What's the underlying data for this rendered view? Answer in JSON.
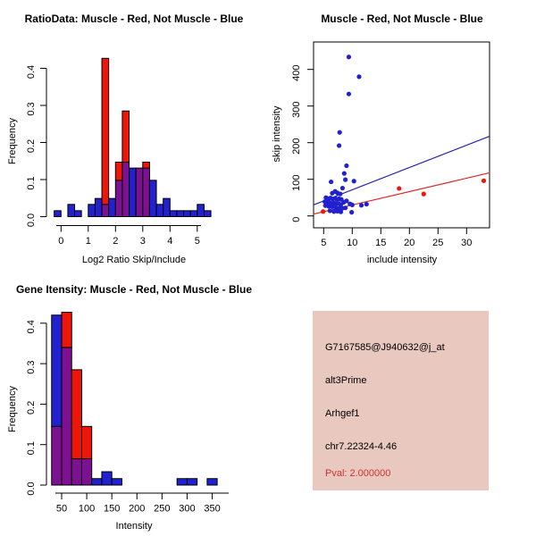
{
  "colors": {
    "red": "#ee1509",
    "blue": "#2121d0",
    "overlap_purple": "#7c1191",
    "blue_line": "#2222aa",
    "red_line": "#dd2222",
    "info_box_bg": "#e9c8c0",
    "pval_red": "#cd3232",
    "axis": "#000000"
  },
  "info_box": {
    "probe_id": "G7167585@J940632@j_at",
    "splice_type": "alt3Prime",
    "gene": "Arhgef1",
    "location": "chr7.22324-4.46",
    "pval": "Pval: 2.000000"
  },
  "chart_data": [
    {
      "id": "ratio_hist",
      "type": "bar",
      "subtype": "overlaid-histogram",
      "title": "RatioData: Muscle - Red, Not Muscle - Blue",
      "xlabel": "Log2 Ratio Skip/Include",
      "ylabel": "Frequency",
      "x_ticks": [
        0,
        1,
        2,
        3,
        4,
        5
      ],
      "y_ticks": [
        0.0,
        0.1,
        0.2,
        0.3,
        0.4
      ],
      "xlim": [
        -0.5,
        5.6
      ],
      "ylim": [
        0,
        0.45
      ],
      "bin_width": 0.25,
      "series_legend": {
        "red": "Muscle",
        "blue": "Not Muscle"
      },
      "bars": [
        {
          "x": -0.25,
          "blue": 0.016,
          "red": 0
        },
        {
          "x": 0.25,
          "blue": 0.033,
          "red": 0
        },
        {
          "x": 0.5,
          "blue": 0.016,
          "red": 0
        },
        {
          "x": 1.0,
          "blue": 0.033,
          "red": 0
        },
        {
          "x": 1.25,
          "blue": 0.049,
          "red": 0
        },
        {
          "x": 1.5,
          "blue": 0.033,
          "red": 0.427
        },
        {
          "x": 1.75,
          "blue": 0.049,
          "red": 0
        },
        {
          "x": 2.0,
          "blue": 0.098,
          "red": 0.147
        },
        {
          "x": 2.25,
          "blue": 0.147,
          "red": 0.285
        },
        {
          "x": 2.5,
          "blue": 0.131,
          "red": 0
        },
        {
          "x": 2.75,
          "blue": 0.131,
          "red": 0.131
        },
        {
          "x": 3.0,
          "blue": 0.131,
          "red": 0.147
        },
        {
          "x": 3.25,
          "blue": 0.098,
          "red": 0
        },
        {
          "x": 3.5,
          "blue": 0.033,
          "red": 0
        },
        {
          "x": 3.75,
          "blue": 0.049,
          "red": 0
        },
        {
          "x": 4.0,
          "blue": 0.016,
          "red": 0
        },
        {
          "x": 4.25,
          "blue": 0.016,
          "red": 0
        },
        {
          "x": 4.5,
          "blue": 0.016,
          "red": 0
        },
        {
          "x": 4.75,
          "blue": 0.016,
          "red": 0
        },
        {
          "x": 5.0,
          "blue": 0.033,
          "red": 0
        },
        {
          "x": 5.25,
          "blue": 0.016,
          "red": 0
        }
      ]
    },
    {
      "id": "scatter",
      "type": "scatter",
      "title": "Muscle - Red, Not Muscle - Blue",
      "xlabel": "include intensity",
      "ylabel": "skip intensity",
      "x_ticks": [
        5,
        10,
        15,
        20,
        25,
        30
      ],
      "y_ticks": [
        0,
        100,
        200,
        300,
        400
      ],
      "xlim": [
        3.2,
        34.1
      ],
      "ylim": [
        -33,
        476
      ],
      "blue_points": [
        [
          9.4,
          434
        ],
        [
          11.2,
          380
        ],
        [
          9.4,
          333
        ],
        [
          7.8,
          228
        ],
        [
          7.7,
          192
        ],
        [
          9.0,
          137
        ],
        [
          8.6,
          116
        ],
        [
          8.8,
          99
        ],
        [
          10.3,
          95
        ],
        [
          6.3,
          93
        ],
        [
          8.3,
          76
        ],
        [
          7.0,
          67
        ],
        [
          6.5,
          62
        ],
        [
          7.4,
          63
        ],
        [
          7.9,
          60
        ],
        [
          5.4,
          50
        ],
        [
          5.8,
          47
        ],
        [
          6.2,
          49
        ],
        [
          6.6,
          46
        ],
        [
          7.0,
          48
        ],
        [
          7.3,
          45
        ],
        [
          7.7,
          47
        ],
        [
          8.1,
          45
        ],
        [
          5.2,
          39
        ],
        [
          5.6,
          36
        ],
        [
          6.0,
          37
        ],
        [
          6.4,
          34
        ],
        [
          6.8,
          35
        ],
        [
          7.2,
          33
        ],
        [
          7.6,
          34
        ],
        [
          8.0,
          31
        ],
        [
          8.5,
          37
        ],
        [
          9.0,
          41
        ],
        [
          9.6,
          33
        ],
        [
          10.0,
          30
        ],
        [
          5.3,
          28
        ],
        [
          5.9,
          26
        ],
        [
          6.5,
          25
        ],
        [
          7.1,
          23
        ],
        [
          7.7,
          21
        ],
        [
          8.3,
          21
        ],
        [
          8.8,
          22
        ],
        [
          11.6,
          29
        ],
        [
          12.5,
          32
        ],
        [
          6.1,
          14
        ],
        [
          6.8,
          12
        ],
        [
          7.4,
          13
        ],
        [
          8.0,
          11
        ],
        [
          9.9,
          10
        ]
      ],
      "red_points": [
        [
          4.9,
          12
        ],
        [
          18.2,
          75
        ],
        [
          22.5,
          60
        ],
        [
          33.0,
          96
        ]
      ],
      "blue_line": {
        "x1": 3.2,
        "y1": 30,
        "x2": 34.1,
        "y2": 218
      },
      "red_line": {
        "x1": 3.2,
        "y1": 5,
        "x2": 34.1,
        "y2": 118
      }
    },
    {
      "id": "gene_hist",
      "type": "bar",
      "subtype": "overlaid-histogram",
      "title": "Gene Itensity: Muscle - Red, Not Muscle - Blue",
      "xlabel": "Intensity",
      "ylabel": "Frequency",
      "x_ticks": [
        50,
        100,
        150,
        200,
        250,
        300,
        350
      ],
      "y_ticks": [
        0.0,
        0.1,
        0.2,
        0.3,
        0.4
      ],
      "xlim": [
        20,
        370
      ],
      "ylim": [
        0,
        0.45
      ],
      "bin_width": 20,
      "series_legend": {
        "red": "Muscle",
        "blue": "Not Muscle"
      },
      "bars": [
        {
          "x": 30,
          "blue": 0.42,
          "red": 0.145
        },
        {
          "x": 50,
          "blue": 0.34,
          "red": 0.427
        },
        {
          "x": 70,
          "blue": 0.065,
          "red": 0.285
        },
        {
          "x": 90,
          "blue": 0.065,
          "red": 0.145
        },
        {
          "x": 110,
          "blue": 0.016,
          "red": 0
        },
        {
          "x": 130,
          "blue": 0.033,
          "red": 0
        },
        {
          "x": 150,
          "blue": 0.016,
          "red": 0
        },
        {
          "x": 280,
          "blue": 0.016,
          "red": 0
        },
        {
          "x": 300,
          "blue": 0.016,
          "red": 0
        },
        {
          "x": 340,
          "blue": 0.016,
          "red": 0
        }
      ]
    }
  ]
}
